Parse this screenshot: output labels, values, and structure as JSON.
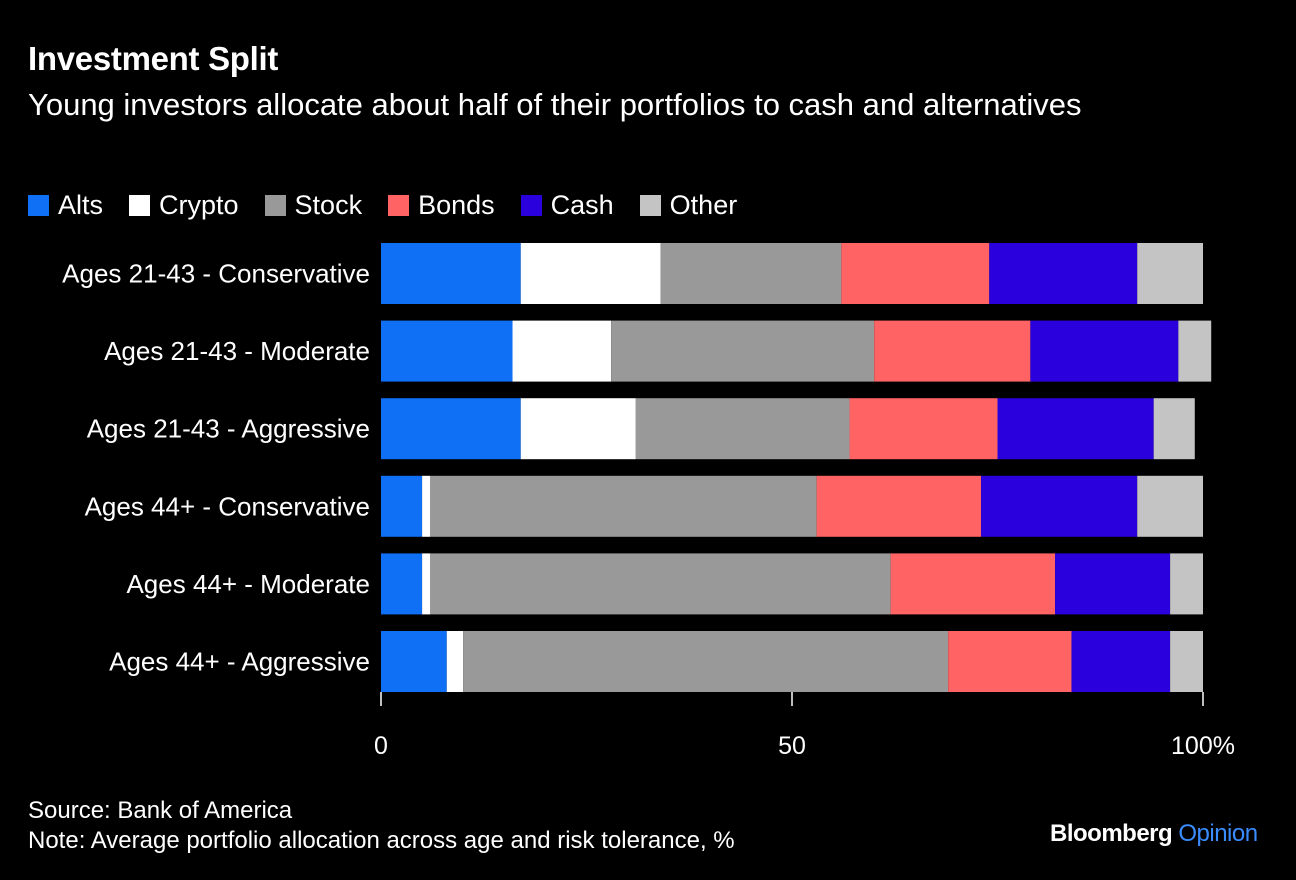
{
  "header": {
    "title": "Investment Split",
    "subtitle": "Young investors allocate about half of their portfolios to cash and alternatives"
  },
  "legend": [
    {
      "label": "Alts",
      "color": "#0f6ff5"
    },
    {
      "label": "Crypto",
      "color": "#ffffff"
    },
    {
      "label": "Stock",
      "color": "#999999"
    },
    {
      "label": "Bonds",
      "color": "#ff6363"
    },
    {
      "label": "Cash",
      "color": "#2a00dc"
    },
    {
      "label": "Other",
      "color": "#c4c4c4"
    }
  ],
  "chart_data": {
    "type": "bar",
    "orientation": "horizontal",
    "stacked": true,
    "categories": [
      "Ages 21-43 - Conservative",
      "Ages 21-43 - Moderate",
      "Ages 21-43 - Aggressive",
      "Ages 44+ - Conservative",
      "Ages 44+ - Moderate",
      "Ages 44+ - Aggressive"
    ],
    "series": [
      {
        "name": "Alts",
        "color": "#0f6ff5",
        "values": [
          17,
          16,
          17,
          5,
          5,
          8
        ]
      },
      {
        "name": "Crypto",
        "color": "#ffffff",
        "values": [
          17,
          12,
          14,
          1,
          1,
          2
        ]
      },
      {
        "name": "Stock",
        "color": "#999999",
        "values": [
          22,
          32,
          26,
          47,
          56,
          59
        ]
      },
      {
        "name": "Bonds",
        "color": "#ff6363",
        "values": [
          18,
          19,
          18,
          20,
          20,
          15
        ]
      },
      {
        "name": "Cash",
        "color": "#2a00dc",
        "values": [
          18,
          18,
          19,
          19,
          14,
          12
        ]
      },
      {
        "name": "Other",
        "color": "#c4c4c4",
        "values": [
          8,
          4,
          5,
          8,
          4,
          4
        ]
      }
    ],
    "xlim": [
      0,
      100
    ],
    "xticks": [
      {
        "value": 0,
        "label": "0"
      },
      {
        "value": 50,
        "label": "50"
      },
      {
        "value": 100,
        "label": "100%"
      }
    ],
    "legend_position": "top-left"
  },
  "footer": {
    "source": "Source: Bank of America",
    "note": "Note: Average portfolio allocation across age and risk tolerance, %",
    "brand": "Bloomberg",
    "brand_suffix": "Opinion"
  }
}
